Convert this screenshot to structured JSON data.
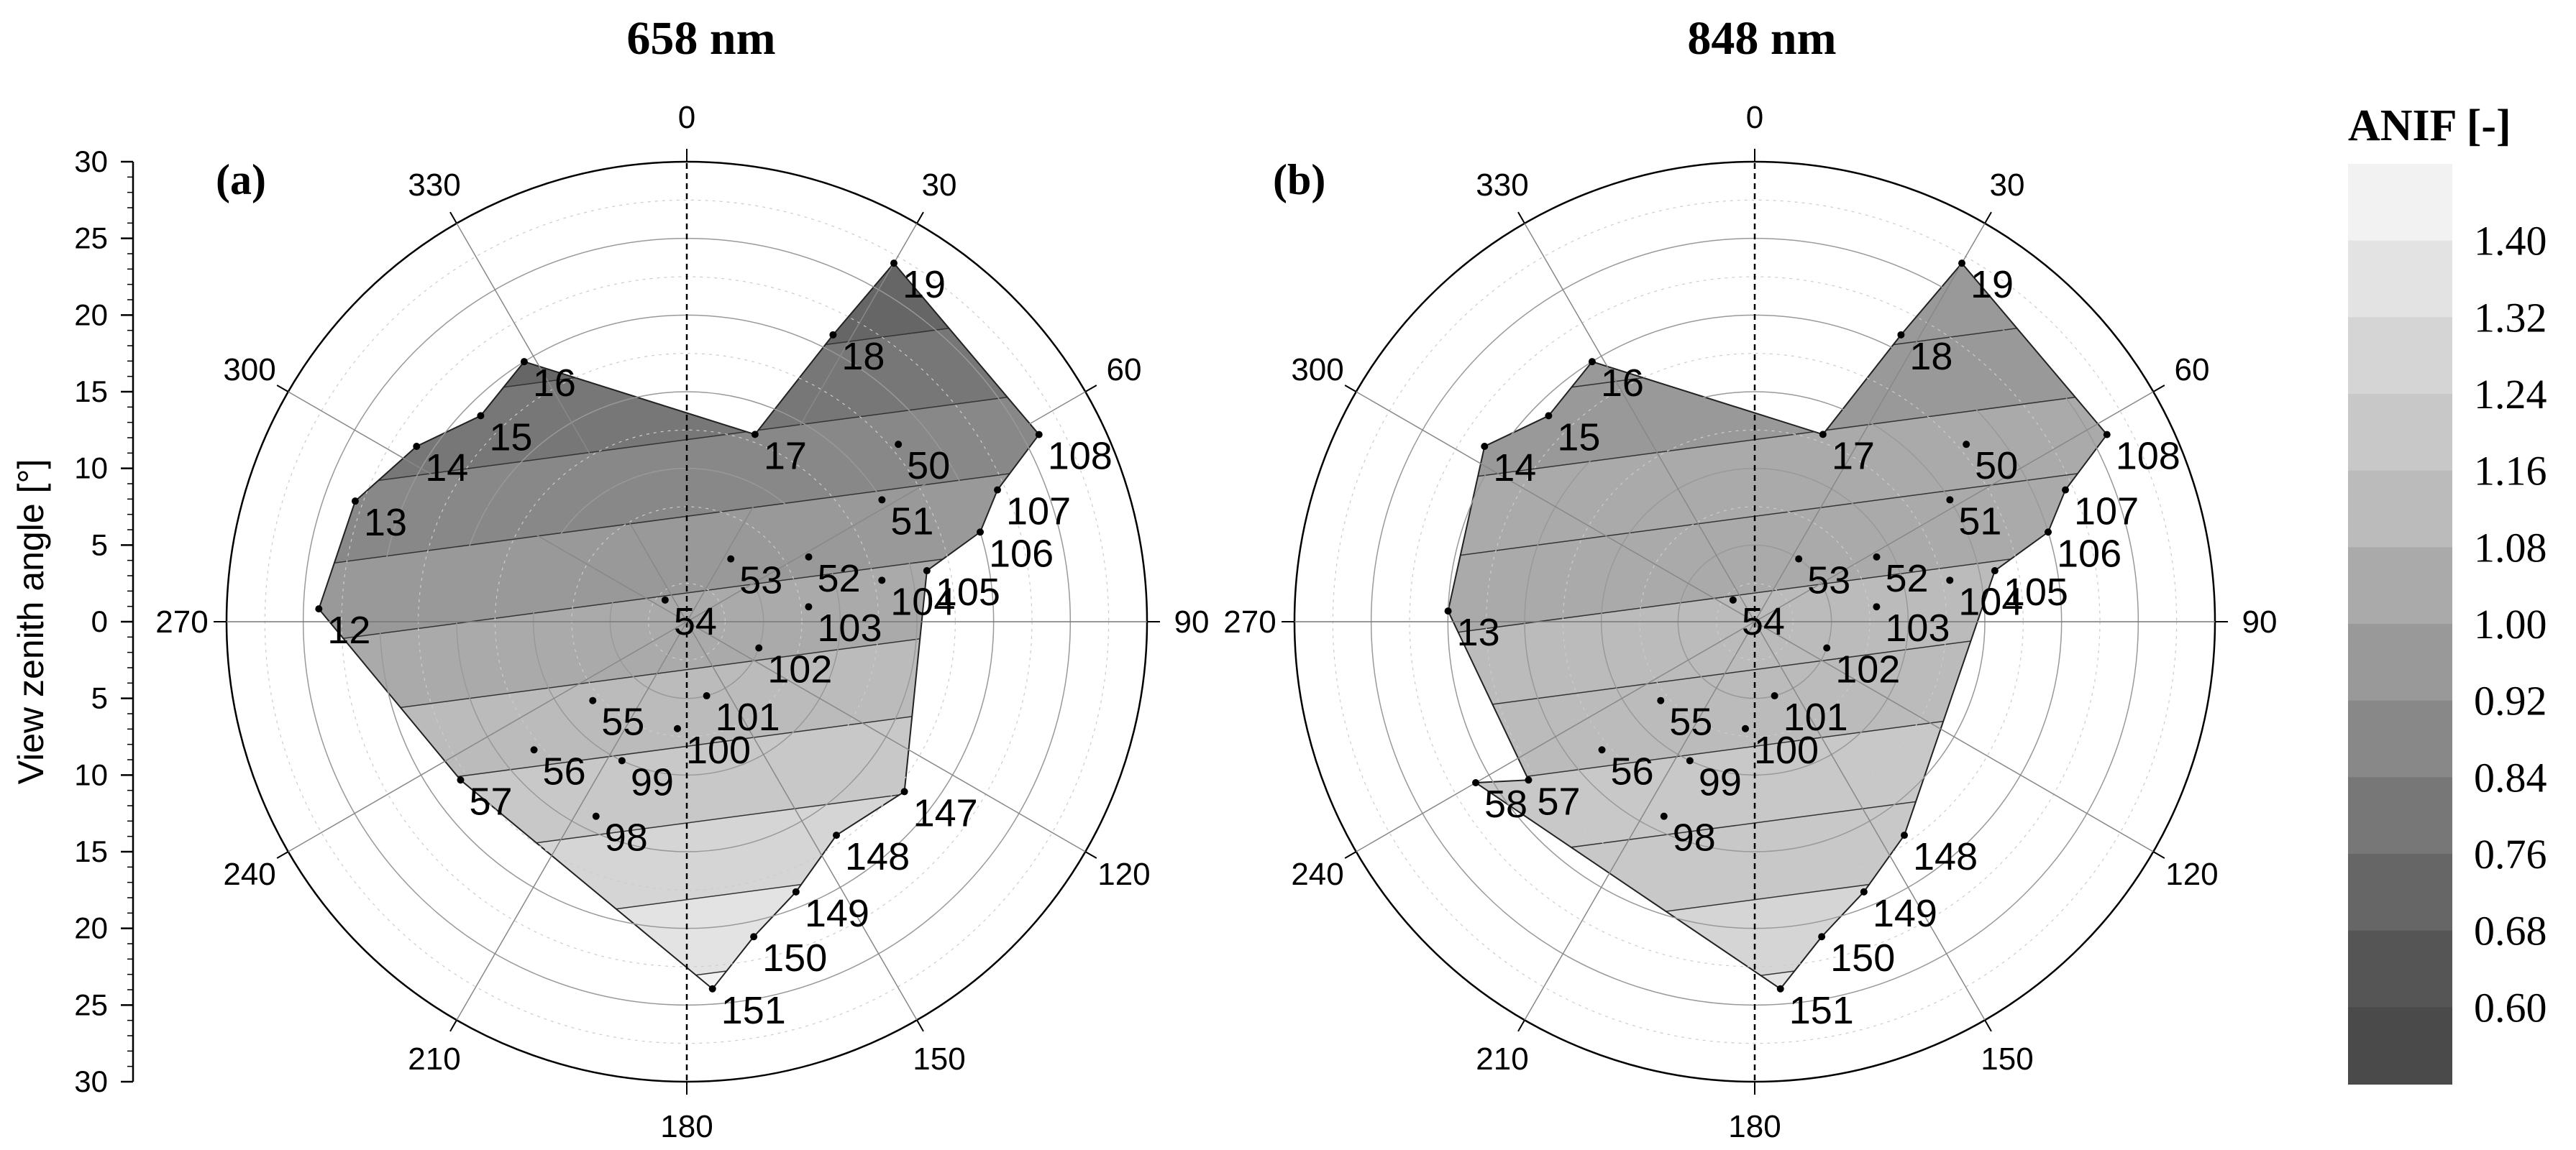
{
  "chart_data": [
    {
      "type": "polar-contour",
      "title": "658 nm",
      "panel": "(a)",
      "azimuth_ticks": [
        "0",
        "30",
        "60",
        "90",
        "120",
        "150",
        "180",
        "210",
        "240",
        "270",
        "300",
        "330"
      ],
      "radial_range": [
        0,
        30
      ],
      "points": [
        {
          "id": "19",
          "az": 30,
          "vza": 27
        },
        {
          "id": "18",
          "az": 27,
          "vza": 21
        },
        {
          "id": "17",
          "az": 20,
          "vza": 13
        },
        {
          "id": "16",
          "az": 328,
          "vza": 20
        },
        {
          "id": "15",
          "az": 315,
          "vza": 19
        },
        {
          "id": "14",
          "az": 303,
          "vza": 21
        },
        {
          "id": "13",
          "az": 290,
          "vza": 23
        },
        {
          "id": "12",
          "az": 272,
          "vza": 24
        },
        {
          "id": "50",
          "az": 50,
          "vza": 18
        },
        {
          "id": "51",
          "az": 58,
          "vza": 15
        },
        {
          "id": "108",
          "az": 62,
          "vza": 26
        },
        {
          "id": "107",
          "az": 67,
          "vza": 22
        },
        {
          "id": "106",
          "az": 73,
          "vza": 20
        },
        {
          "id": "105",
          "az": 78,
          "vza": 16
        },
        {
          "id": "52",
          "az": 62,
          "vza": 9
        },
        {
          "id": "104",
          "az": 78,
          "vza": 13
        },
        {
          "id": "53",
          "az": 35,
          "vza": 5
        },
        {
          "id": "103",
          "az": 83,
          "vza": 8
        },
        {
          "id": "54",
          "az": 315,
          "vza": 2
        },
        {
          "id": "102",
          "az": 110,
          "vza": 5
        },
        {
          "id": "55",
          "az": 230,
          "vza": 8
        },
        {
          "id": "101",
          "az": 165,
          "vza": 5
        },
        {
          "id": "56",
          "az": 230,
          "vza": 13
        },
        {
          "id": "100",
          "az": 185,
          "vza": 7
        },
        {
          "id": "57",
          "az": 235,
          "vza": 18
        },
        {
          "id": "99",
          "az": 205,
          "vza": 10
        },
        {
          "id": "98",
          "az": 205,
          "vza": 14
        },
        {
          "id": "147",
          "az": 128,
          "vza": 18
        },
        {
          "id": "148",
          "az": 145,
          "vza": 17
        },
        {
          "id": "149",
          "az": 158,
          "vza": 19
        },
        {
          "id": "150",
          "az": 168,
          "vza": 21
        },
        {
          "id": "151",
          "az": 176,
          "vza": 24
        }
      ]
    },
    {
      "type": "polar-contour",
      "title": "848 nm",
      "panel": "(b)",
      "azimuth_ticks": [
        "0",
        "30",
        "60",
        "90",
        "120",
        "150",
        "180",
        "210",
        "240",
        "270",
        "300",
        "330"
      ],
      "radial_range": [
        0,
        30
      ],
      "points": [
        {
          "id": "19",
          "az": 30,
          "vza": 27
        },
        {
          "id": "18",
          "az": 27,
          "vza": 21
        },
        {
          "id": "17",
          "az": 20,
          "vza": 13
        },
        {
          "id": "16",
          "az": 328,
          "vza": 20
        },
        {
          "id": "15",
          "az": 315,
          "vza": 19
        },
        {
          "id": "14",
          "az": 303,
          "vza": 21
        },
        {
          "id": "13",
          "az": 272,
          "vza": 20
        },
        {
          "id": "50",
          "az": 50,
          "vza": 18
        },
        {
          "id": "51",
          "az": 58,
          "vza": 15
        },
        {
          "id": "108",
          "az": 62,
          "vza": 26
        },
        {
          "id": "107",
          "az": 67,
          "vza": 22
        },
        {
          "id": "106",
          "az": 73,
          "vza": 20
        },
        {
          "id": "105",
          "az": 78,
          "vza": 16
        },
        {
          "id": "52",
          "az": 62,
          "vza": 9
        },
        {
          "id": "104",
          "az": 78,
          "vza": 13
        },
        {
          "id": "53",
          "az": 35,
          "vza": 5
        },
        {
          "id": "103",
          "az": 83,
          "vza": 8
        },
        {
          "id": "54",
          "az": 315,
          "vza": 2
        },
        {
          "id": "102",
          "az": 110,
          "vza": 5
        },
        {
          "id": "55",
          "az": 230,
          "vza": 8
        },
        {
          "id": "101",
          "az": 165,
          "vza": 5
        },
        {
          "id": "56",
          "az": 230,
          "vza": 13
        },
        {
          "id": "100",
          "az": 185,
          "vza": 7
        },
        {
          "id": "57",
          "az": 235,
          "vza": 18
        },
        {
          "id": "58",
          "az": 240,
          "vza": 21
        },
        {
          "id": "99",
          "az": 205,
          "vza": 10
        },
        {
          "id": "98",
          "az": 205,
          "vza": 14
        },
        {
          "id": "148",
          "az": 145,
          "vza": 17
        },
        {
          "id": "149",
          "az": 158,
          "vza": 19
        },
        {
          "id": "150",
          "az": 168,
          "vza": 21
        },
        {
          "id": "151",
          "az": 176,
          "vza": 24
        }
      ]
    }
  ],
  "y_axis": {
    "label": "View zenith angle [°]",
    "ticks": [
      "30",
      "25",
      "20",
      "15",
      "10",
      "5",
      "0",
      "5",
      "10",
      "15",
      "20",
      "25",
      "30"
    ]
  },
  "legend": {
    "title": "ANIF [-]",
    "levels": [
      "1.40",
      "1.32",
      "1.24",
      "1.16",
      "1.08",
      "1.00",
      "0.92",
      "0.84",
      "0.76",
      "0.68",
      "0.60"
    ],
    "colors": [
      "#f2f2f2",
      "#e3e3e3",
      "#d5d5d5",
      "#c8c8c8",
      "#bbbbbb",
      "#aaaaaa",
      "#999999",
      "#888888",
      "#777777",
      "#666666",
      "#555555",
      "#4a4a4a"
    ]
  }
}
